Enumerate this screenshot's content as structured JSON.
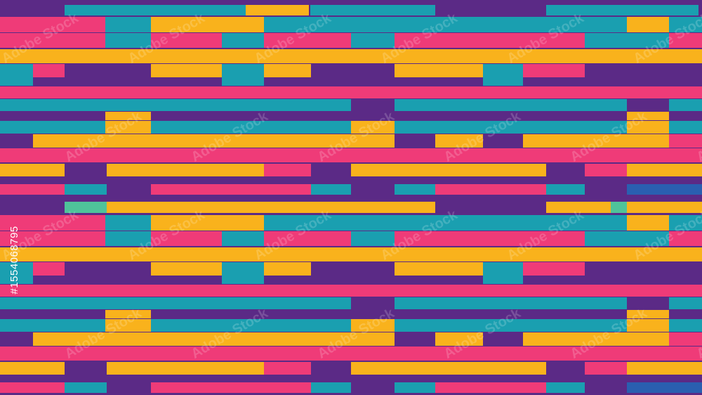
{
  "watermark": "Adobe Stock",
  "image_id": "#1554068795"
}
